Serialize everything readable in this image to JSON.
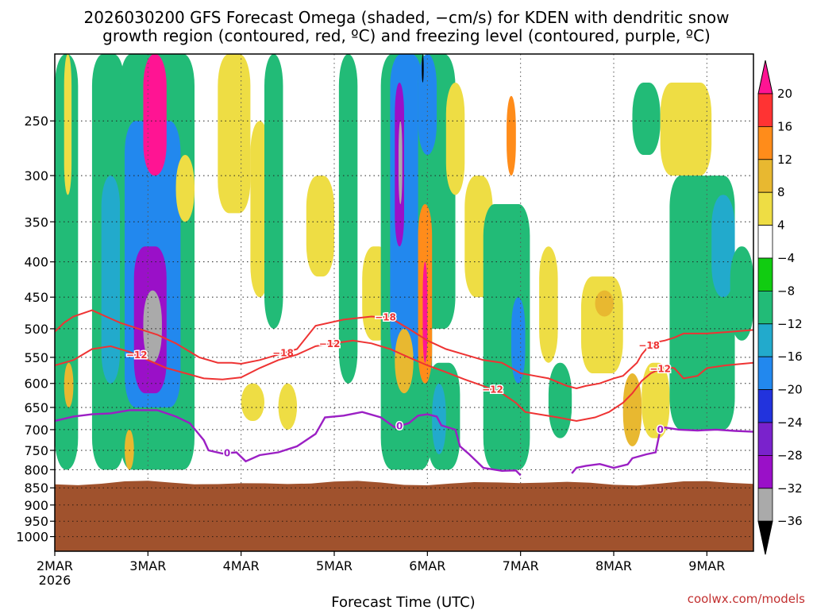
{
  "chart_data": {
    "type": "heatmap",
    "title_lines": [
      "2026030200 GFS Forecast Omega (shaded, −cm/s) for KDEN with dendritic snow",
      "growth region (contoured, red, ºC) and freezing level (contoured, purple, ºC)"
    ],
    "xlabel": "Forecast Time (UTC)",
    "x_ticks": [
      {
        "day": 0,
        "label": "2MAR",
        "sub": "2026"
      },
      {
        "day": 1,
        "label": "3MAR",
        "sub": ""
      },
      {
        "day": 2,
        "label": "4MAR",
        "sub": ""
      },
      {
        "day": 3,
        "label": "5MAR",
        "sub": ""
      },
      {
        "day": 4,
        "label": "6MAR",
        "sub": ""
      },
      {
        "day": 5,
        "label": "7MAR",
        "sub": ""
      },
      {
        "day": 6,
        "label": "8MAR",
        "sub": ""
      },
      {
        "day": 7,
        "label": "9MAR",
        "sub": ""
      }
    ],
    "x_range_days": [
      0,
      7.5
    ],
    "y_ticks": [
      250,
      300,
      350,
      400,
      450,
      500,
      550,
      600,
      650,
      700,
      750,
      800,
      850,
      900,
      950,
      1000
    ],
    "y_range_hpa": [
      200,
      1050
    ],
    "terrain_top_hpa": 830,
    "terrain_color": "#a0522d",
    "omega_levels": [
      "20",
      "16",
      "12",
      "8",
      "4",
      "−4",
      "−8",
      "−12",
      "−16",
      "−20",
      "−24",
      "−28",
      "−32",
      "−36"
    ],
    "omega_colors": [
      "#ff1493",
      "#ff3333",
      "#ff8c1a",
      "#e8b830",
      "#eedd44",
      "#ffffff",
      "#11cc11",
      "#22bb77",
      "#22aacc",
      "#2288ee",
      "#2233dd",
      "#7a22cc",
      "#9a10c8",
      "#aaaaaa",
      "#000000"
    ],
    "shaded_regions": [
      {
        "value": -8,
        "day": [
          0.0,
          0.25
        ],
        "hpa": [
          200,
          800
        ]
      },
      {
        "value": 6,
        "day": [
          0.1,
          0.18
        ],
        "hpa": [
          200,
          320
        ]
      },
      {
        "value": 10,
        "day": [
          0.1,
          0.2
        ],
        "hpa": [
          560,
          650
        ]
      },
      {
        "value": -8,
        "day": [
          0.4,
          0.75
        ],
        "hpa": [
          200,
          800
        ]
      },
      {
        "value": -12,
        "day": [
          0.5,
          0.7
        ],
        "hpa": [
          300,
          600
        ]
      },
      {
        "value": -8,
        "day": [
          0.7,
          1.5
        ],
        "hpa": [
          200,
          800
        ]
      },
      {
        "value": -16,
        "day": [
          0.75,
          1.35
        ],
        "hpa": [
          250,
          650
        ]
      },
      {
        "value": -28,
        "day": [
          0.85,
          1.2
        ],
        "hpa": [
          380,
          620
        ]
      },
      {
        "value": -32,
        "day": [
          0.95,
          1.15
        ],
        "hpa": [
          440,
          560
        ]
      },
      {
        "value": 20,
        "day": [
          0.95,
          1.2
        ],
        "hpa": [
          200,
          300
        ]
      },
      {
        "value": 10,
        "day": [
          0.75,
          0.85
        ],
        "hpa": [
          700,
          800
        ]
      },
      {
        "value": 6,
        "day": [
          1.3,
          1.5
        ],
        "hpa": [
          280,
          350
        ]
      },
      {
        "value": 6,
        "day": [
          1.75,
          2.1
        ],
        "hpa": [
          200,
          340
        ]
      },
      {
        "value": 6,
        "day": [
          2.1,
          2.3
        ],
        "hpa": [
          250,
          450
        ]
      },
      {
        "value": -8,
        "day": [
          2.25,
          2.45
        ],
        "hpa": [
          200,
          500
        ]
      },
      {
        "value": 6,
        "day": [
          2.7,
          3.0
        ],
        "hpa": [
          300,
          420
        ]
      },
      {
        "value": 6,
        "day": [
          2.0,
          2.25
        ],
        "hpa": [
          600,
          680
        ]
      },
      {
        "value": 6,
        "day": [
          2.4,
          2.6
        ],
        "hpa": [
          600,
          700
        ]
      },
      {
        "value": -8,
        "day": [
          3.05,
          3.25
        ],
        "hpa": [
          200,
          600
        ]
      },
      {
        "value": 6,
        "day": [
          3.3,
          3.6
        ],
        "hpa": [
          380,
          520
        ]
      },
      {
        "value": -8,
        "day": [
          3.5,
          4.05
        ],
        "hpa": [
          200,
          800
        ]
      },
      {
        "value": -16,
        "day": [
          3.6,
          3.95
        ],
        "hpa": [
          200,
          560
        ]
      },
      {
        "value": -28,
        "day": [
          3.65,
          3.75
        ],
        "hpa": [
          220,
          380
        ]
      },
      {
        "value": -32,
        "day": [
          3.69,
          3.73
        ],
        "hpa": [
          250,
          330
        ]
      },
      {
        "value": -8,
        "day": [
          3.9,
          4.3
        ],
        "hpa": [
          200,
          500
        ]
      },
      {
        "value": -16,
        "day": [
          3.9,
          4.1
        ],
        "hpa": [
          200,
          280
        ]
      },
      {
        "value": -36,
        "day": [
          3.94,
          3.96
        ],
        "hpa": [
          200,
          220
        ]
      },
      {
        "value": 12,
        "day": [
          3.9,
          4.05
        ],
        "hpa": [
          330,
          600
        ]
      },
      {
        "value": 20,
        "day": [
          3.95,
          4.0
        ],
        "hpa": [
          400,
          560
        ]
      },
      {
        "value": 10,
        "day": [
          3.65,
          3.85
        ],
        "hpa": [
          500,
          620
        ]
      },
      {
        "value": 6,
        "day": [
          4.2,
          4.4
        ],
        "hpa": [
          220,
          320
        ]
      },
      {
        "value": -8,
        "day": [
          4.0,
          4.35
        ],
        "hpa": [
          560,
          800
        ]
      },
      {
        "value": -12,
        "day": [
          4.05,
          4.2
        ],
        "hpa": [
          600,
          760
        ]
      },
      {
        "value": 6,
        "day": [
          4.4,
          4.7
        ],
        "hpa": [
          300,
          450
        ]
      },
      {
        "value": -8,
        "day": [
          4.6,
          5.1
        ],
        "hpa": [
          330,
          800
        ]
      },
      {
        "value": -16,
        "day": [
          4.9,
          5.05
        ],
        "hpa": [
          450,
          600
        ]
      },
      {
        "value": 14,
        "day": [
          4.85,
          4.95
        ],
        "hpa": [
          230,
          300
        ]
      },
      {
        "value": 6,
        "day": [
          5.2,
          5.4
        ],
        "hpa": [
          380,
          560
        ]
      },
      {
        "value": -8,
        "day": [
          5.3,
          5.55
        ],
        "hpa": [
          560,
          720
        ]
      },
      {
        "value": 6,
        "day": [
          5.65,
          6.1
        ],
        "hpa": [
          420,
          580
        ]
      },
      {
        "value": 10,
        "day": [
          5.8,
          6.0
        ],
        "hpa": [
          440,
          480
        ]
      },
      {
        "value": 10,
        "day": [
          6.1,
          6.3
        ],
        "hpa": [
          580,
          740
        ]
      },
      {
        "value": 6,
        "day": [
          6.3,
          6.6
        ],
        "hpa": [
          560,
          720
        ]
      },
      {
        "value": -8,
        "day": [
          6.2,
          6.5
        ],
        "hpa": [
          220,
          280
        ]
      },
      {
        "value": 6,
        "day": [
          6.5,
          7.05
        ],
        "hpa": [
          220,
          300
        ]
      },
      {
        "value": -8,
        "day": [
          6.6,
          7.3
        ],
        "hpa": [
          300,
          700
        ]
      },
      {
        "value": -12,
        "day": [
          7.05,
          7.3
        ],
        "hpa": [
          320,
          450
        ]
      },
      {
        "value": -8,
        "day": [
          7.25,
          7.5
        ],
        "hpa": [
          380,
          520
        ]
      }
    ],
    "contours": [
      {
        "name": "-18C dendritic growth top",
        "label": "−18",
        "color": "#ee3333",
        "label_at": [
          2.45,
          3.55,
          6.38
        ],
        "points": [
          [
            0,
            505
          ],
          [
            0.1,
            490
          ],
          [
            0.2,
            480
          ],
          [
            0.4,
            470
          ],
          [
            0.55,
            480
          ],
          [
            0.7,
            490
          ],
          [
            0.9,
            500
          ],
          [
            1.1,
            510
          ],
          [
            1.3,
            525
          ],
          [
            1.55,
            550
          ],
          [
            1.75,
            560
          ],
          [
            1.9,
            560
          ],
          [
            2.0,
            562
          ],
          [
            2.2,
            555
          ],
          [
            2.4,
            545
          ],
          [
            2.6,
            535
          ],
          [
            2.8,
            495
          ],
          [
            3.1,
            485
          ],
          [
            3.4,
            480
          ],
          [
            3.6,
            482
          ],
          [
            3.8,
            500
          ],
          [
            4.0,
            520
          ],
          [
            4.2,
            535
          ],
          [
            4.4,
            545
          ],
          [
            4.6,
            555
          ],
          [
            4.8,
            560
          ],
          [
            5.0,
            580
          ],
          [
            5.15,
            585
          ],
          [
            5.3,
            590
          ],
          [
            5.5,
            605
          ],
          [
            5.6,
            610
          ],
          [
            5.7,
            605
          ],
          [
            5.85,
            600
          ],
          [
            6.0,
            590
          ],
          [
            6.1,
            585
          ],
          [
            6.25,
            560
          ],
          [
            6.3,
            545
          ],
          [
            6.4,
            525
          ],
          [
            6.55,
            520
          ],
          [
            6.65,
            515
          ],
          [
            6.75,
            508
          ],
          [
            7.0,
            508
          ],
          [
            7.25,
            505
          ],
          [
            7.5,
            502
          ]
        ]
      },
      {
        "name": "-12C dendritic growth bottom",
        "label": "−12",
        "color": "#ee3333",
        "label_at": [
          0.88,
          2.95,
          4.7,
          6.5
        ],
        "points": [
          [
            0,
            565
          ],
          [
            0.2,
            555
          ],
          [
            0.4,
            535
          ],
          [
            0.6,
            530
          ],
          [
            0.8,
            540
          ],
          [
            1.0,
            555
          ],
          [
            1.2,
            570
          ],
          [
            1.4,
            580
          ],
          [
            1.6,
            590
          ],
          [
            1.8,
            592
          ],
          [
            2.0,
            588
          ],
          [
            2.2,
            570
          ],
          [
            2.4,
            555
          ],
          [
            2.6,
            545
          ],
          [
            2.8,
            530
          ],
          [
            3.0,
            525
          ],
          [
            3.2,
            520
          ],
          [
            3.4,
            525
          ],
          [
            3.6,
            535
          ],
          [
            3.8,
            550
          ],
          [
            4.0,
            565
          ],
          [
            4.2,
            578
          ],
          [
            4.4,
            592
          ],
          [
            4.6,
            605
          ],
          [
            4.8,
            620
          ],
          [
            4.95,
            640
          ],
          [
            5.05,
            660
          ],
          [
            5.2,
            665
          ],
          [
            5.4,
            672
          ],
          [
            5.6,
            680
          ],
          [
            5.8,
            672
          ],
          [
            5.95,
            660
          ],
          [
            6.1,
            640
          ],
          [
            6.2,
            620
          ],
          [
            6.3,
            595
          ],
          [
            6.4,
            580
          ],
          [
            6.55,
            568
          ],
          [
            6.65,
            570
          ],
          [
            6.75,
            590
          ],
          [
            6.9,
            585
          ],
          [
            7.0,
            570
          ],
          [
            7.2,
            565
          ],
          [
            7.5,
            560
          ]
        ]
      },
      {
        "name": "0C freezing level",
        "label": "0",
        "color": "#9b1fc4",
        "label_at": [
          1.85,
          3.7,
          6.5
        ],
        "points": [
          [
            0,
            680
          ],
          [
            0.2,
            670
          ],
          [
            0.4,
            665
          ],
          [
            0.6,
            663
          ],
          [
            0.8,
            656
          ],
          [
            1.1,
            656
          ],
          [
            1.3,
            670
          ],
          [
            1.45,
            685
          ],
          [
            1.6,
            725
          ],
          [
            1.65,
            750
          ],
          [
            1.8,
            758
          ],
          [
            1.95,
            755
          ],
          [
            2.05,
            778
          ],
          [
            2.2,
            762
          ],
          [
            2.4,
            755
          ],
          [
            2.6,
            740
          ],
          [
            2.8,
            710
          ],
          [
            2.9,
            672
          ],
          [
            3.1,
            668
          ],
          [
            3.3,
            660
          ],
          [
            3.5,
            672
          ],
          [
            3.65,
            695
          ],
          [
            3.8,
            685
          ],
          [
            3.9,
            668
          ],
          [
            4.0,
            665
          ],
          [
            4.1,
            670
          ],
          [
            4.15,
            690
          ],
          [
            4.3,
            700
          ],
          [
            4.35,
            740
          ],
          [
            4.45,
            760
          ],
          [
            4.6,
            795
          ],
          [
            4.8,
            803
          ],
          [
            4.95,
            802
          ],
          [
            5.0,
            815
          ]
        ],
        "points2": [
          [
            5.55,
            810
          ],
          [
            5.6,
            795
          ],
          [
            5.7,
            790
          ],
          [
            5.85,
            785
          ],
          [
            6.0,
            795
          ],
          [
            6.15,
            786
          ],
          [
            6.2,
            770
          ],
          [
            6.35,
            760
          ],
          [
            6.45,
            755
          ],
          [
            6.5,
            700
          ],
          [
            6.55,
            695
          ],
          [
            6.7,
            700
          ],
          [
            6.9,
            702
          ],
          [
            7.1,
            700
          ],
          [
            7.3,
            703
          ],
          [
            7.5,
            705
          ]
        ]
      }
    ],
    "credit": "coolwx.com/models"
  }
}
